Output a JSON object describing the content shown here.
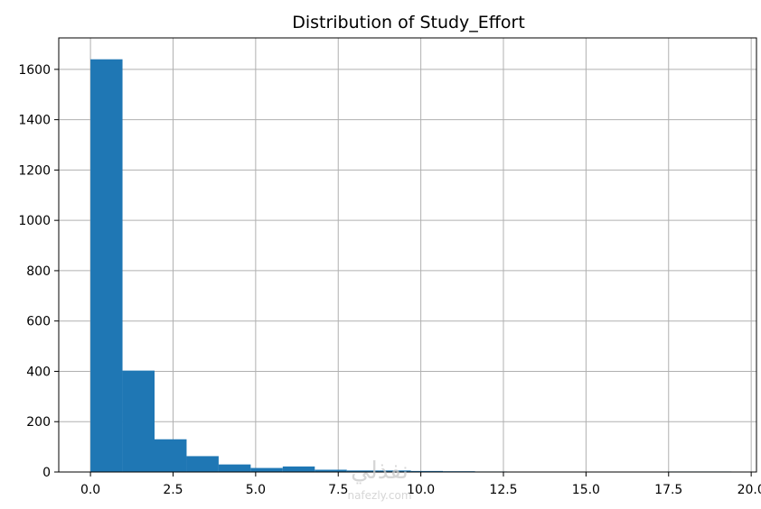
{
  "chart_data": {
    "type": "bar",
    "title": "Distribution of Study_Effort",
    "xlabel": "",
    "ylabel": "",
    "xlim": [
      -0.96,
      20.16
    ],
    "ylim": [
      0,
      1725
    ],
    "grid": true,
    "bar_color": "#1f77b4",
    "grid_color": "#b0b0b0",
    "bin_edges": [
      0.0,
      0.97,
      1.94,
      2.91,
      3.88,
      4.85,
      5.82,
      6.79,
      7.76,
      8.73,
      9.7,
      10.67,
      11.64,
      12.61,
      13.58,
      14.55,
      15.52,
      16.49,
      17.46,
      18.43,
      19.4
    ],
    "values": [
      1640,
      403,
      130,
      63,
      30,
      16,
      22,
      9,
      6,
      6,
      4,
      3,
      2,
      1,
      1,
      1,
      1,
      1,
      2,
      2
    ],
    "x_ticks": [
      0.0,
      2.5,
      5.0,
      7.5,
      10.0,
      12.5,
      15.0,
      17.5,
      20.0
    ],
    "x_tick_labels": [
      "0.0",
      "2.5",
      "5.0",
      "7.5",
      "10.0",
      "12.5",
      "15.0",
      "17.5",
      "20.0"
    ],
    "y_ticks": [
      0,
      200,
      400,
      600,
      800,
      1000,
      1200,
      1400,
      1600
    ],
    "y_tick_labels": [
      "0",
      "200",
      "400",
      "600",
      "800",
      "1000",
      "1200",
      "1400",
      "1600"
    ]
  },
  "watermark": {
    "arabic": "نفذلي",
    "latin": "nafezly.com"
  }
}
